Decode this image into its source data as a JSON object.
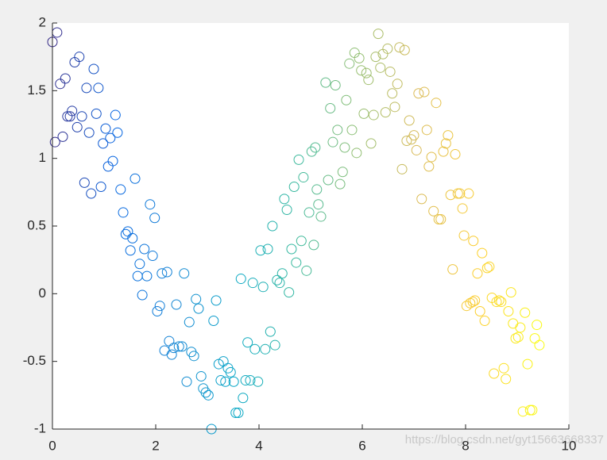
{
  "chart_data": {
    "type": "scatter",
    "x": [
      0.0,
      0.09,
      0.05,
      0.15,
      0.25,
      0.2,
      0.29,
      0.34,
      0.38,
      0.43,
      0.52,
      0.48,
      0.57,
      0.62,
      0.66,
      0.71,
      0.75,
      0.8,
      0.85,
      0.89,
      0.94,
      0.98,
      1.03,
      1.08,
      1.12,
      1.17,
      1.22,
      1.26,
      1.32,
      1.37,
      1.42,
      1.46,
      1.51,
      1.55,
      1.6,
      1.65,
      1.69,
      1.74,
      1.78,
      1.83,
      1.89,
      1.94,
      1.98,
      2.03,
      2.08,
      2.12,
      2.17,
      2.22,
      2.26,
      2.31,
      2.35,
      2.4,
      2.45,
      2.51,
      2.55,
      2.6,
      2.65,
      2.69,
      2.74,
      2.78,
      2.83,
      2.88,
      2.92,
      2.97,
      3.02,
      3.08,
      3.12,
      3.17,
      3.22,
      3.26,
      3.31,
      3.35,
      3.4,
      3.45,
      3.51,
      3.55,
      3.6,
      3.65,
      3.69,
      3.74,
      3.78,
      3.83,
      3.88,
      3.92,
      3.98,
      4.03,
      4.08,
      4.12,
      4.17,
      4.22,
      4.26,
      4.31,
      4.35,
      4.4,
      4.45,
      4.49,
      4.54,
      4.58,
      4.63,
      4.68,
      4.72,
      4.77,
      4.82,
      4.86,
      4.92,
      4.97,
      5.02,
      5.06,
      5.09,
      5.12,
      5.15,
      5.2,
      5.29,
      5.34,
      5.38,
      5.43,
      5.48,
      5.52,
      5.57,
      5.62,
      5.66,
      5.69,
      5.75,
      5.8,
      5.85,
      5.89,
      5.94,
      5.98,
      6.03,
      6.08,
      6.12,
      6.17,
      6.22,
      6.26,
      6.31,
      6.35,
      6.4,
      6.45,
      6.49,
      6.54,
      6.58,
      6.63,
      6.68,
      6.72,
      6.77,
      6.82,
      6.86,
      6.91,
      6.95,
      7.0,
      7.05,
      7.09,
      7.15,
      7.2,
      7.25,
      7.29,
      7.34,
      7.38,
      7.43,
      7.48,
      7.52,
      7.57,
      7.62,
      7.66,
      7.71,
      7.75,
      7.8,
      7.85,
      7.89,
      7.94,
      7.97,
      8.02,
      8.06,
      8.09,
      8.14,
      8.15,
      8.18,
      8.23,
      8.28,
      8.32,
      8.37,
      8.42,
      8.46,
      8.51,
      8.55,
      8.6,
      8.65,
      8.69,
      8.74,
      8.78,
      8.83,
      8.88,
      8.92,
      8.97,
      9.02,
      9.06,
      9.11,
      9.15,
      9.2,
      9.25,
      9.29,
      9.34,
      9.38,
      9.43
    ],
    "values": [
      1.86,
      1.93,
      1.12,
      1.55,
      1.59,
      1.16,
      1.31,
      1.31,
      1.35,
      1.71,
      1.75,
      1.23,
      1.31,
      0.82,
      1.52,
      1.19,
      0.74,
      1.66,
      1.33,
      1.52,
      0.79,
      1.11,
      1.22,
      0.94,
      1.15,
      0.98,
      1.32,
      1.19,
      0.77,
      0.6,
      0.44,
      0.46,
      0.32,
      0.41,
      0.85,
      0.13,
      0.22,
      -0.01,
      0.33,
      0.13,
      0.66,
      0.28,
      0.56,
      -0.13,
      -0.09,
      0.15,
      -0.42,
      0.16,
      -0.35,
      -0.45,
      -0.4,
      -0.08,
      -0.39,
      -0.39,
      0.15,
      -0.65,
      -0.21,
      -0.43,
      -0.46,
      -0.04,
      -0.11,
      -0.61,
      -0.7,
      -0.73,
      -0.75,
      -1.0,
      -0.2,
      -0.05,
      -0.52,
      -0.64,
      -0.5,
      -0.65,
      -0.55,
      -0.58,
      -0.65,
      -0.88,
      -0.88,
      0.11,
      -0.77,
      -0.64,
      -0.36,
      -0.64,
      0.08,
      -0.41,
      -0.65,
      0.32,
      0.05,
      -0.41,
      0.33,
      -0.28,
      0.5,
      -0.38,
      0.1,
      0.08,
      0.15,
      0.7,
      0.62,
      0.01,
      0.33,
      0.79,
      0.23,
      0.99,
      0.39,
      0.86,
      0.17,
      0.6,
      1.05,
      0.36,
      1.08,
      0.77,
      0.66,
      0.57,
      1.56,
      0.84,
      1.37,
      1.12,
      1.54,
      1.21,
      0.81,
      0.9,
      1.08,
      1.43,
      1.7,
      1.21,
      1.78,
      1.04,
      1.74,
      1.65,
      1.33,
      1.63,
      1.58,
      1.11,
      1.32,
      1.75,
      1.92,
      1.67,
      1.77,
      1.34,
      1.81,
      1.64,
      1.48,
      1.38,
      1.55,
      1.82,
      0.92,
      1.8,
      1.13,
      1.28,
      1.14,
      1.17,
      1.06,
      1.48,
      0.7,
      1.49,
      1.21,
      0.94,
      1.01,
      0.61,
      1.41,
      0.55,
      0.55,
      1.05,
      1.11,
      1.17,
      0.73,
      0.18,
      1.03,
      0.74,
      0.74,
      0.63,
      0.43,
      -0.09,
      0.74,
      -0.07,
      -0.06,
      0.39,
      -0.05,
      0.15,
      -0.13,
      0.3,
      -0.2,
      0.19,
      0.2,
      -0.03,
      -0.59,
      -0.06,
      -0.05,
      -0.06,
      -0.55,
      -0.63,
      -0.13,
      0.01,
      -0.22,
      -0.33,
      -0.32,
      -0.25,
      -0.87,
      -0.14,
      -0.52,
      -0.86,
      -0.86,
      -0.33,
      -0.23,
      -0.38
    ],
    "colormap": [
      "#352a87",
      "#0363e1",
      "#1485d4",
      "#06a7c6",
      "#38b99e",
      "#92bf73",
      "#d9ba56",
      "#fcce2e",
      "#f9fb0e"
    ],
    "xlim": [
      0,
      10
    ],
    "xticks": [
      0,
      2,
      4,
      6,
      8,
      10
    ],
    "ylim": [
      -1,
      2
    ],
    "yticks": [
      -1,
      -0.5,
      0,
      0.5,
      1,
      1.5,
      2
    ],
    "watermark": "https://blog.csdn.net/gyt15663668337"
  }
}
